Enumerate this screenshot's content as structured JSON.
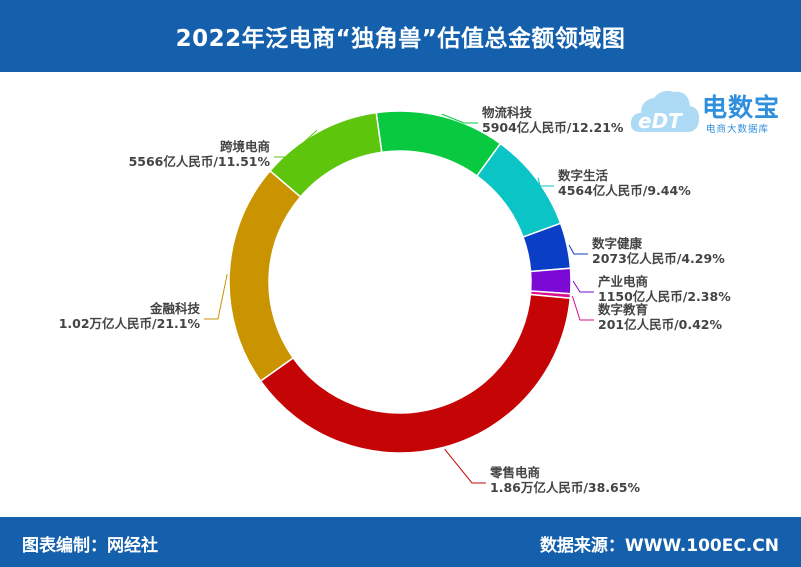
{
  "header": {
    "title": "2022年泛电商“独角兽”估值总金额领域图"
  },
  "footer": {
    "left": "图表编制：网经社",
    "right": "数据来源：WWW.100EC.CN"
  },
  "logo": {
    "mark": "eDT",
    "name": "电数宝",
    "sub": "电商大数据库"
  },
  "chart_data": {
    "type": "pie",
    "subtype": "donut",
    "title": "2022年泛电商“独角兽”估值总金额领域图",
    "unit": "亿人民币",
    "slices": [
      {
        "name": "物流科技",
        "value": 5904,
        "percent": 12.21,
        "value_label": "5904亿人民币/12.21%",
        "color": "#08c93f"
      },
      {
        "name": "数字生活",
        "value": 4564,
        "percent": 9.44,
        "value_label": "4564亿人民币/9.44%",
        "color": "#0ac4c6"
      },
      {
        "name": "数字健康",
        "value": 2073,
        "percent": 4.29,
        "value_label": "2073亿人民币/4.29%",
        "color": "#0a3ec7"
      },
      {
        "name": "产业电商",
        "value": 1150,
        "percent": 2.38,
        "value_label": "1150亿人民币/2.38%",
        "color": "#7a0ad4"
      },
      {
        "name": "数字教育",
        "value": 201,
        "percent": 0.42,
        "value_label": "201亿人民币/0.42%",
        "color": "#d9108b"
      },
      {
        "name": "零售电商",
        "value": 18600,
        "percent": 38.65,
        "value_label": "1.86万亿人民币/38.65%",
        "color": "#c50505"
      },
      {
        "name": "金融科技",
        "value": 10200,
        "percent": 21.1,
        "value_label": "1.02万亿人民币/21.1%",
        "color": "#c99400"
      },
      {
        "name": "跨境电商",
        "value": 5566,
        "percent": 11.51,
        "value_label": "5566亿人民币/11.51%",
        "color": "#5cc50c"
      }
    ]
  }
}
